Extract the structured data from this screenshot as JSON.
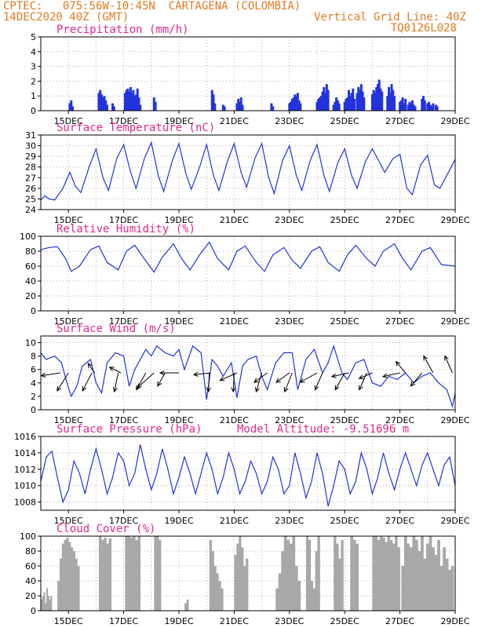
{
  "header": {
    "line1": "CPTEC:   075:56W-10:45N  CARTAGENA (COLOMBIA)",
    "line2_left": "14DEC2020 40Z (GMT)",
    "line2_right": "Vertical Grid Line: 40Z",
    "line3_right": "TQ0126L028"
  },
  "colors": {
    "header": "#e07a1f",
    "title": "#e0288f",
    "series": "#2233dd",
    "cloud": "#a8a8a8",
    "wind_arrow": "#000000"
  },
  "x_ticks": [
    "15DEC",
    "17DEC",
    "19DEC",
    "21DEC",
    "23DEC",
    "25DEC",
    "27DEC",
    "29DEC"
  ],
  "chart_data": [
    {
      "type": "bar",
      "title": "Precipitation (mm/h)",
      "x_unit": "days since 14DEC 00Z (approx)",
      "ylim": [
        0,
        5
      ],
      "yticks": [
        0,
        1,
        2,
        3,
        4,
        5
      ],
      "x": [
        1.05,
        1.1,
        1.15,
        2.1,
        2.15,
        2.2,
        2.25,
        2.3,
        2.35,
        2.4,
        2.6,
        2.65,
        3.05,
        3.1,
        3.15,
        3.2,
        3.25,
        3.3,
        3.35,
        3.4,
        3.45,
        3.5,
        3.55,
        3.6,
        4.1,
        4.15,
        6.2,
        6.25,
        6.3,
        6.6,
        6.65,
        7.1,
        7.15,
        7.2,
        7.25,
        7.3,
        8.35,
        8.4,
        9.0,
        9.05,
        9.1,
        9.15,
        9.2,
        9.25,
        9.3,
        9.35,
        9.4,
        10.0,
        10.05,
        10.1,
        10.15,
        10.2,
        10.25,
        10.3,
        10.35,
        10.4,
        10.6,
        10.65,
        10.7,
        10.75,
        10.8,
        11.0,
        11.05,
        11.1,
        11.15,
        11.2,
        11.25,
        11.3,
        11.35,
        11.45,
        11.5,
        11.55,
        11.6,
        11.65,
        11.7,
        12.0,
        12.05,
        12.1,
        12.15,
        12.2,
        12.25,
        12.3,
        12.35,
        12.55,
        12.6,
        12.65,
        12.7,
        12.75,
        12.8,
        13.0,
        13.05,
        13.1,
        13.15,
        13.2,
        13.3,
        13.35,
        13.4,
        13.45,
        13.5,
        13.55,
        13.8,
        13.85,
        13.9,
        14.0,
        14.05,
        14.1,
        14.15,
        14.2,
        14.3,
        14.35
      ],
      "values": [
        0.5,
        0.7,
        0.3,
        1.2,
        1.4,
        1.1,
        0.9,
        1.0,
        0.7,
        0.4,
        0.5,
        0.3,
        1.2,
        1.4,
        1.5,
        1.3,
        1.6,
        1.2,
        1.4,
        1.0,
        1.1,
        1.5,
        0.9,
        0.4,
        0.9,
        0.6,
        1.4,
        1.1,
        0.5,
        0.4,
        0.3,
        0.5,
        0.8,
        0.6,
        0.9,
        0.4,
        0.5,
        0.3,
        0.5,
        0.6,
        0.8,
        0.9,
        1.1,
        1.0,
        1.2,
        0.7,
        0.5,
        0.6,
        0.8,
        0.9,
        1.0,
        1.3,
        1.6,
        1.2,
        1.8,
        1.4,
        0.4,
        0.6,
        0.9,
        0.7,
        0.5,
        0.6,
        0.8,
        0.9,
        1.4,
        1.0,
        1.2,
        1.5,
        0.8,
        1.2,
        1.6,
        1.4,
        1.8,
        1.3,
        0.9,
        1.1,
        1.4,
        1.2,
        1.6,
        1.8,
        2.1,
        1.5,
        1.3,
        1.0,
        1.6,
        1.2,
        1.8,
        1.4,
        1.0,
        0.6,
        0.7,
        0.9,
        0.5,
        0.8,
        0.4,
        0.6,
        0.5,
        0.7,
        0.4,
        0.3,
        0.8,
        1.0,
        0.7,
        0.5,
        0.6,
        0.4,
        0.3,
        0.5,
        0.4,
        0.3
      ]
    },
    {
      "type": "line",
      "title": "Surface Temperature (nC)",
      "ylim": [
        24,
        31
      ],
      "yticks": [
        24,
        25,
        26,
        27,
        28,
        29,
        30,
        31
      ],
      "series": [
        {
          "x": [
            0,
            0.15,
            0.3,
            0.5,
            0.8,
            1.05,
            1.25,
            1.45,
            1.75,
            2.0,
            2.25,
            2.45,
            2.75,
            3.0,
            3.25,
            3.45,
            3.75,
            4.0,
            4.25,
            4.45,
            4.75,
            5.0,
            5.25,
            5.45,
            5.75,
            6.0,
            6.25,
            6.45,
            6.75,
            7.0,
            7.25,
            7.45,
            7.75,
            8.0,
            8.25,
            8.45,
            8.75,
            9.0,
            9.25,
            9.45,
            9.75,
            10.0,
            10.25,
            10.45,
            10.75,
            11.0,
            11.25,
            11.45,
            11.75,
            12.0,
            12.25,
            12.45,
            12.75,
            13.0,
            13.25,
            13.45,
            13.75,
            14.0,
            14.25,
            14.45,
            15.0
          ],
          "values": [
            24.9,
            25.3,
            25.0,
            24.9,
            26.0,
            27.5,
            26.2,
            25.6,
            28.0,
            29.7,
            27.0,
            25.8,
            28.8,
            30.1,
            27.5,
            26.0,
            28.8,
            30.3,
            27.2,
            25.7,
            28.5,
            30.2,
            27.4,
            25.9,
            28.0,
            30.1,
            27.2,
            25.8,
            28.5,
            30.2,
            27.5,
            26.1,
            28.8,
            30.2,
            27.0,
            25.5,
            28.6,
            30.0,
            27.2,
            25.8,
            28.6,
            30.1,
            27.2,
            25.7,
            28.4,
            29.7,
            27.2,
            26.0,
            28.5,
            29.7,
            28.5,
            27.5,
            28.8,
            29.2,
            26.0,
            25.4,
            28.2,
            29.1,
            26.3,
            26.0,
            28.7
          ]
        }
      ]
    },
    {
      "type": "line",
      "title": "Relative Humidity (%)",
      "ylim": [
        0,
        100
      ],
      "yticks": [
        0,
        20,
        40,
        60,
        80,
        100
      ],
      "series": [
        {
          "x": [
            0,
            0.3,
            0.6,
            0.9,
            1.1,
            1.4,
            1.8,
            2.1,
            2.4,
            2.8,
            3.1,
            3.4,
            3.8,
            4.1,
            4.4,
            4.8,
            5.1,
            5.4,
            5.8,
            6.1,
            6.4,
            6.8,
            7.1,
            7.4,
            7.8,
            8.1,
            8.4,
            8.8,
            9.1,
            9.4,
            9.8,
            10.1,
            10.4,
            10.8,
            11.1,
            11.4,
            11.8,
            12.1,
            12.4,
            12.8,
            13.1,
            13.4,
            13.8,
            14.1,
            14.5,
            15.0
          ],
          "values": [
            82,
            85,
            86,
            70,
            53,
            60,
            82,
            87,
            65,
            55,
            80,
            88,
            67,
            52,
            72,
            90,
            70,
            55,
            78,
            92,
            70,
            55,
            80,
            87,
            65,
            53,
            75,
            85,
            68,
            57,
            80,
            86,
            65,
            53,
            75,
            88,
            70,
            60,
            80,
            90,
            70,
            55,
            80,
            85,
            62,
            60
          ]
        }
      ]
    },
    {
      "type": "line",
      "title": "Surface Wind (m/s)",
      "ylim": [
        0,
        11
      ],
      "yticks": [
        0,
        2,
        4,
        6,
        8,
        10
      ],
      "series": [
        {
          "x": [
            0,
            0.2,
            0.5,
            0.75,
            0.95,
            1.1,
            1.3,
            1.5,
            1.8,
            2.0,
            2.2,
            2.4,
            2.7,
            3.0,
            3.2,
            3.4,
            3.6,
            3.8,
            4.0,
            4.2,
            4.5,
            4.8,
            5.0,
            5.2,
            5.5,
            5.8,
            6.0,
            6.2,
            6.4,
            6.6,
            6.9,
            7.1,
            7.3,
            7.5,
            7.8,
            8.0,
            8.2,
            8.5,
            8.8,
            9.1,
            9.3,
            9.6,
            9.9,
            10.2,
            10.4,
            10.6,
            10.9,
            11.1,
            11.4,
            11.7,
            12.0,
            12.3,
            12.6,
            12.9,
            13.2,
            13.5,
            13.8,
            14.1,
            14.4,
            14.7,
            14.9,
            15.0
          ],
          "values": [
            8.5,
            7.5,
            8.0,
            7.0,
            4.0,
            2.0,
            3.5,
            6.5,
            7.5,
            4.0,
            2.5,
            7.0,
            8.5,
            8.0,
            3.5,
            6.0,
            7.5,
            9.0,
            8.0,
            9.5,
            8.5,
            8.0,
            9.0,
            6.0,
            9.5,
            8.5,
            1.5,
            7.5,
            6.5,
            5.0,
            7.0,
            1.8,
            6.5,
            7.5,
            8.0,
            5.0,
            3.0,
            7.0,
            8.5,
            8.5,
            3.0,
            7.5,
            9.0,
            5.5,
            7.0,
            9.5,
            5.5,
            4.5,
            7.0,
            7.5,
            4.0,
            3.5,
            5.0,
            4.5,
            5.5,
            4.0,
            5.0,
            5.5,
            4.0,
            3.0,
            0.5,
            2.5
          ]
        }
      ],
      "wind_arrows": [
        {
          "x": 0.7,
          "u": 1.0,
          "v": 0.15
        },
        {
          "x": 1.0,
          "u": 0.6,
          "v": 0.95
        },
        {
          "x": 1.85,
          "u": 0.5,
          "v": 0.95
        },
        {
          "x": 1.95,
          "u": 0.35,
          "v": -0.5
        },
        {
          "x": 2.8,
          "u": 0.2,
          "v": 1.0
        },
        {
          "x": 2.9,
          "u": 0.6,
          "v": -0.3
        },
        {
          "x": 3.8,
          "u": 0.5,
          "v": 0.9
        },
        {
          "x": 4.1,
          "u": 0.9,
          "v": 0.8
        },
        {
          "x": 4.5,
          "u": 0.4,
          "v": 0.7
        },
        {
          "x": 5.0,
          "u": 1.0,
          "v": 0.0
        },
        {
          "x": 6.1,
          "u": 0.05,
          "v": 1.0
        },
        {
          "x": 6.15,
          "u": 0.9,
          "v": 0.1
        },
        {
          "x": 7.0,
          "u": 0.05,
          "v": 1.0
        },
        {
          "x": 7.1,
          "u": 0.9,
          "v": 0.4
        },
        {
          "x": 8.0,
          "u": 0.3,
          "v": 1.0
        },
        {
          "x": 8.2,
          "u": 0.7,
          "v": 0.5
        },
        {
          "x": 9.0,
          "u": 0.7,
          "v": 0.5
        },
        {
          "x": 9.1,
          "u": 0.4,
          "v": 1.0
        },
        {
          "x": 10.0,
          "u": 0.9,
          "v": 0.5
        },
        {
          "x": 10.2,
          "u": 0.4,
          "v": 0.9
        },
        {
          "x": 11.0,
          "u": 0.5,
          "v": 0.9
        },
        {
          "x": 11.15,
          "u": 0.9,
          "v": 0.2
        },
        {
          "x": 11.8,
          "u": 0.4,
          "v": 0.9
        },
        {
          "x": 12.0,
          "u": 0.7,
          "v": 0.3
        },
        {
          "x": 13.0,
          "u": 0.9,
          "v": 0.2
        },
        {
          "x": 13.2,
          "u": 0.5,
          "v": -0.6
        },
        {
          "x": 13.8,
          "u": 0.6,
          "v": 0.7
        },
        {
          "x": 14.2,
          "u": 0.5,
          "v": -0.9
        },
        {
          "x": 14.9,
          "u": 0.4,
          "v": -0.9
        }
      ]
    },
    {
      "type": "line",
      "title": "Surface Pressure (hPa)",
      "annotation": "Model Altitude: -9.51696 m",
      "ylim": [
        1007,
        1016
      ],
      "yticks": [
        1008,
        1010,
        1012,
        1014,
        1016
      ],
      "series": [
        {
          "x": [
            0,
            0.2,
            0.4,
            0.6,
            0.8,
            1.0,
            1.2,
            1.4,
            1.6,
            1.8,
            2.0,
            2.2,
            2.4,
            2.6,
            2.8,
            3.0,
            3.2,
            3.4,
            3.6,
            3.8,
            4.0,
            4.2,
            4.4,
            4.6,
            4.8,
            5.0,
            5.2,
            5.4,
            5.6,
            5.8,
            6.0,
            6.2,
            6.4,
            6.6,
            6.8,
            7.0,
            7.2,
            7.4,
            7.6,
            7.8,
            8.0,
            8.2,
            8.4,
            8.6,
            8.8,
            9.0,
            9.2,
            9.4,
            9.6,
            9.8,
            10.0,
            10.2,
            10.4,
            10.6,
            10.8,
            11.0,
            11.2,
            11.4,
            11.6,
            11.8,
            12.0,
            12.2,
            12.4,
            12.6,
            12.8,
            13.0,
            13.2,
            13.4,
            13.6,
            13.8,
            14.0,
            14.2,
            14.4,
            14.6,
            14.8,
            15.0
          ],
          "values": [
            1010.5,
            1013.5,
            1014.2,
            1011.0,
            1008.0,
            1009.5,
            1013.0,
            1011.5,
            1009.0,
            1012.0,
            1014.5,
            1012.0,
            1009.0,
            1011.0,
            1014.0,
            1013.0,
            1010.0,
            1011.5,
            1015.0,
            1012.0,
            1009.5,
            1011.5,
            1014.5,
            1012.0,
            1009.0,
            1011.0,
            1013.5,
            1011.5,
            1009.0,
            1011.5,
            1014.0,
            1012.0,
            1009.0,
            1011.0,
            1014.0,
            1012.0,
            1009.0,
            1010.5,
            1013.0,
            1011.5,
            1009.0,
            1010.5,
            1013.5,
            1012.0,
            1009.0,
            1010.0,
            1014.0,
            1011.5,
            1008.5,
            1010.5,
            1014.0,
            1011.5,
            1007.5,
            1010.0,
            1013.0,
            1012.0,
            1009.0,
            1010.5,
            1014.0,
            1012.0,
            1009.0,
            1011.0,
            1014.0,
            1011.5,
            1009.5,
            1012.0,
            1014.0,
            1012.0,
            1010.0,
            1012.5,
            1014.0,
            1012.0,
            1010.0,
            1012.5,
            1013.5,
            1010.0
          ]
        }
      ]
    },
    {
      "type": "bar",
      "title": "Cloud Cover (%)",
      "ylim": [
        0,
        100
      ],
      "yticks": [
        0,
        20,
        40,
        60,
        80,
        100
      ],
      "segments": [
        {
          "x0": 0.0,
          "x1": 0.4,
          "values": [
            15,
            20,
            25,
            10,
            30,
            20,
            15,
            20
          ]
        },
        {
          "x0": 0.6,
          "x1": 1.4,
          "values": [
            40,
            70,
            90,
            95,
            98,
            92,
            85,
            80,
            70,
            60
          ]
        },
        {
          "x0": 2.1,
          "x1": 2.55,
          "values": [
            100,
            95,
            98,
            90,
            97
          ]
        },
        {
          "x0": 3.05,
          "x1": 3.6,
          "values": [
            100,
            100,
            98,
            100,
            95,
            100
          ]
        },
        {
          "x0": 4.1,
          "x1": 4.35,
          "values": [
            100,
            100,
            95
          ]
        },
        {
          "x0": 5.2,
          "x1": 5.35,
          "values": [
            10,
            15
          ]
        },
        {
          "x0": 6.1,
          "x1": 6.6,
          "values": [
            95,
            80,
            60,
            50,
            40,
            30
          ]
        },
        {
          "x0": 7.0,
          "x1": 7.5,
          "values": [
            75,
            90,
            100,
            85,
            60,
            70
          ]
        },
        {
          "x0": 8.5,
          "x1": 9.4,
          "values": [
            30,
            50,
            80,
            100,
            95,
            90,
            100,
            60,
            40
          ]
        },
        {
          "x0": 9.6,
          "x1": 10.1,
          "values": [
            100,
            95,
            40,
            30,
            80,
            100
          ]
        },
        {
          "x0": 10.6,
          "x1": 10.95,
          "values": [
            100,
            90,
            70,
            95
          ]
        },
        {
          "x0": 11.2,
          "x1": 11.5,
          "values": [
            100,
            95,
            90
          ]
        },
        {
          "x0": 12.0,
          "x1": 13.0,
          "values": [
            100,
            100,
            95,
            100,
            98,
            92,
            100,
            95,
            90,
            100,
            85
          ]
        },
        {
          "x0": 13.05,
          "x1": 14.95,
          "values": [
            60,
            100,
            90,
            85,
            100,
            95,
            80,
            100,
            70,
            90,
            100,
            85,
            75,
            95,
            60,
            85,
            70,
            55,
            60
          ]
        }
      ]
    }
  ]
}
